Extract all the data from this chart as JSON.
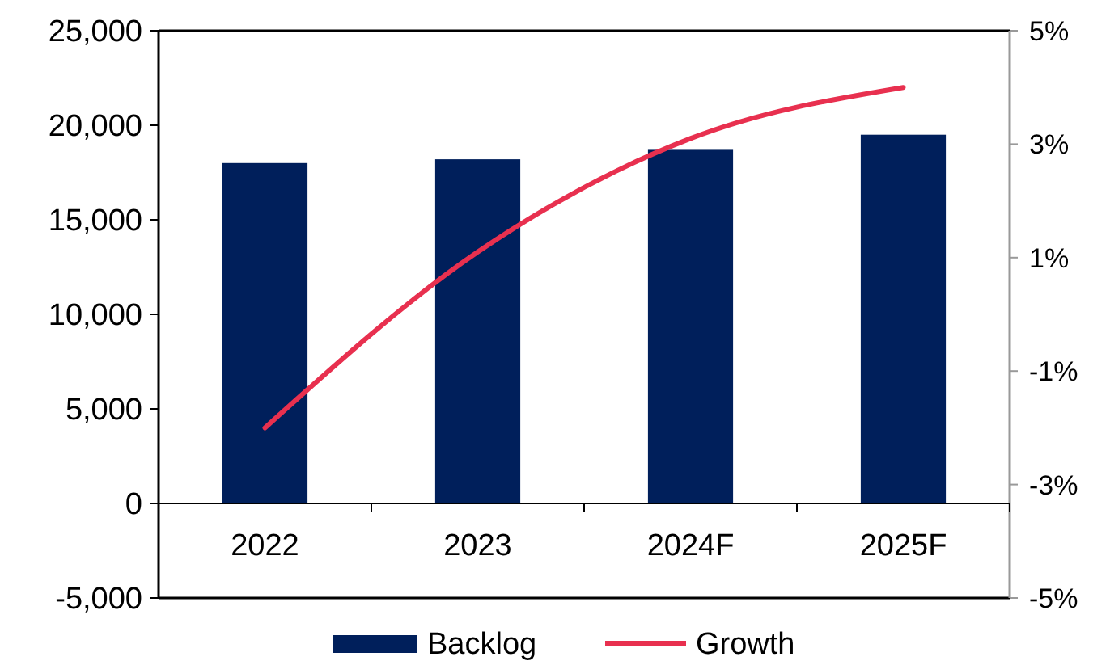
{
  "chart_data": {
    "type": "bar",
    "categories": [
      "2022",
      "2023",
      "2024F",
      "2025F"
    ],
    "series": [
      {
        "name": "Backlog",
        "color": "#001f5b",
        "values": [
          18000,
          18200,
          18700,
          19500
        ]
      },
      {
        "name": "Growth",
        "type": "line",
        "axis": "y2",
        "color": "#e8304f",
        "values": [
          -2.0,
          1.1,
          3.1,
          4.0
        ]
      }
    ],
    "ylim": [
      -5000,
      25000
    ],
    "yticks": [
      {
        "value": -5000,
        "label": "-5,000"
      },
      0,
      {
        "value": 5000,
        "label": "5,000"
      },
      {
        "value": 10000,
        "label": "10,000"
      },
      {
        "value": 15000,
        "label": "15,000"
      },
      {
        "value": 20000,
        "label": "20,000"
      },
      {
        "value": 25000,
        "label": "25,000"
      }
    ],
    "y2lim": [
      -5,
      5
    ],
    "y2ticks": [
      {
        "value": -5,
        "label": "-5%"
      },
      {
        "value": -3,
        "label": "-3%"
      },
      {
        "value": -1,
        "label": "-1%"
      },
      {
        "value": 1,
        "label": "1%"
      },
      {
        "value": 3,
        "label": "3%"
      },
      {
        "value": 5,
        "label": "5%"
      }
    ],
    "legend": "bottom",
    "grid": false,
    "marker": "none",
    "line_style": "solid"
  }
}
